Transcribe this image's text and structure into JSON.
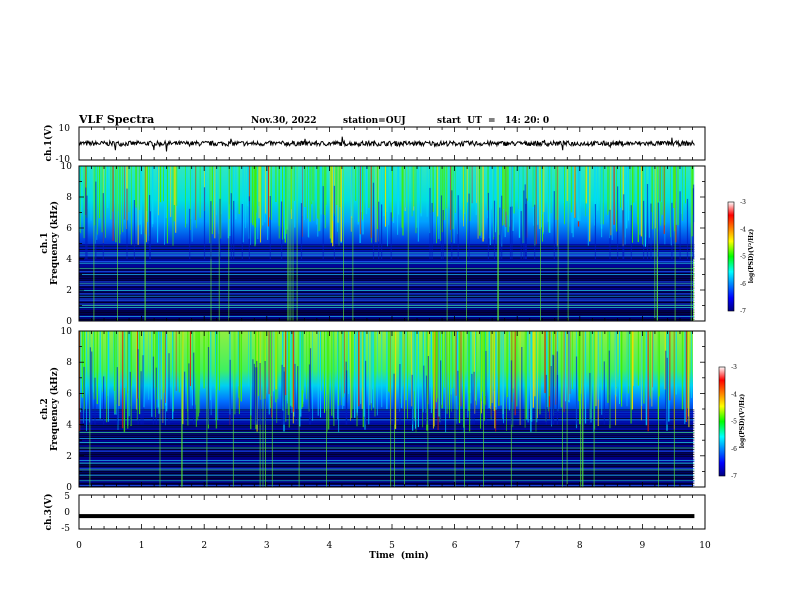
{
  "header": {
    "title": "VLF Spectra",
    "date": "Nov.30, 2022",
    "station": "station=OUJ",
    "start": "start  UT  =   14: 20: 0"
  },
  "chart_data": [
    {
      "type": "line",
      "name": "ch1-waveform",
      "ylabel": "ch.1(V)",
      "ylim": [
        -10,
        10
      ],
      "yticks": [
        "10",
        "-10"
      ],
      "xlim": [
        0,
        10
      ],
      "baseline_value": 0,
      "amplitude_approx": 1.5
    },
    {
      "type": "heatmap",
      "name": "ch1-spectrogram",
      "ylabel_line1": "ch.1",
      "ylabel_line2": "Frequency (kHz)",
      "ylim": [
        0,
        10
      ],
      "yticks": [
        "0",
        "2",
        "4",
        "6",
        "8",
        "10"
      ],
      "xlim": [
        0,
        10
      ],
      "data_end_min": 9.83,
      "colorbar": {
        "label": "log(PSD)(V²/Hz)",
        "range": [
          -7,
          -3
        ],
        "ticks": [
          "-3",
          "-4",
          "-5",
          "-6",
          "-7"
        ]
      }
    },
    {
      "type": "heatmap",
      "name": "ch2-spectrogram",
      "ylabel_line1": "ch.2",
      "ylabel_line2": "Frequency (kHz)",
      "ylim": [
        0,
        10
      ],
      "yticks": [
        "0",
        "2",
        "4",
        "6",
        "8",
        "10"
      ],
      "xlim": [
        0,
        10
      ],
      "data_end_min": 9.83,
      "colorbar": {
        "label": "log(PSD)(V²/Hz)",
        "range": [
          -7,
          -3
        ],
        "ticks": [
          "-3",
          "-4",
          "-5",
          "-6",
          "-7"
        ]
      }
    },
    {
      "type": "line",
      "name": "ch3-waveform",
      "ylabel": "ch.3(V)",
      "ylim": [
        -5,
        5
      ],
      "yticks": [
        "5",
        "0",
        "-5"
      ],
      "xlim": [
        0,
        10
      ],
      "baseline_value": -1.2,
      "xlabel": "Time  (min)",
      "xticks": [
        "0",
        "1",
        "2",
        "3",
        "4",
        "5",
        "6",
        "7",
        "8",
        "9",
        "10"
      ]
    }
  ]
}
